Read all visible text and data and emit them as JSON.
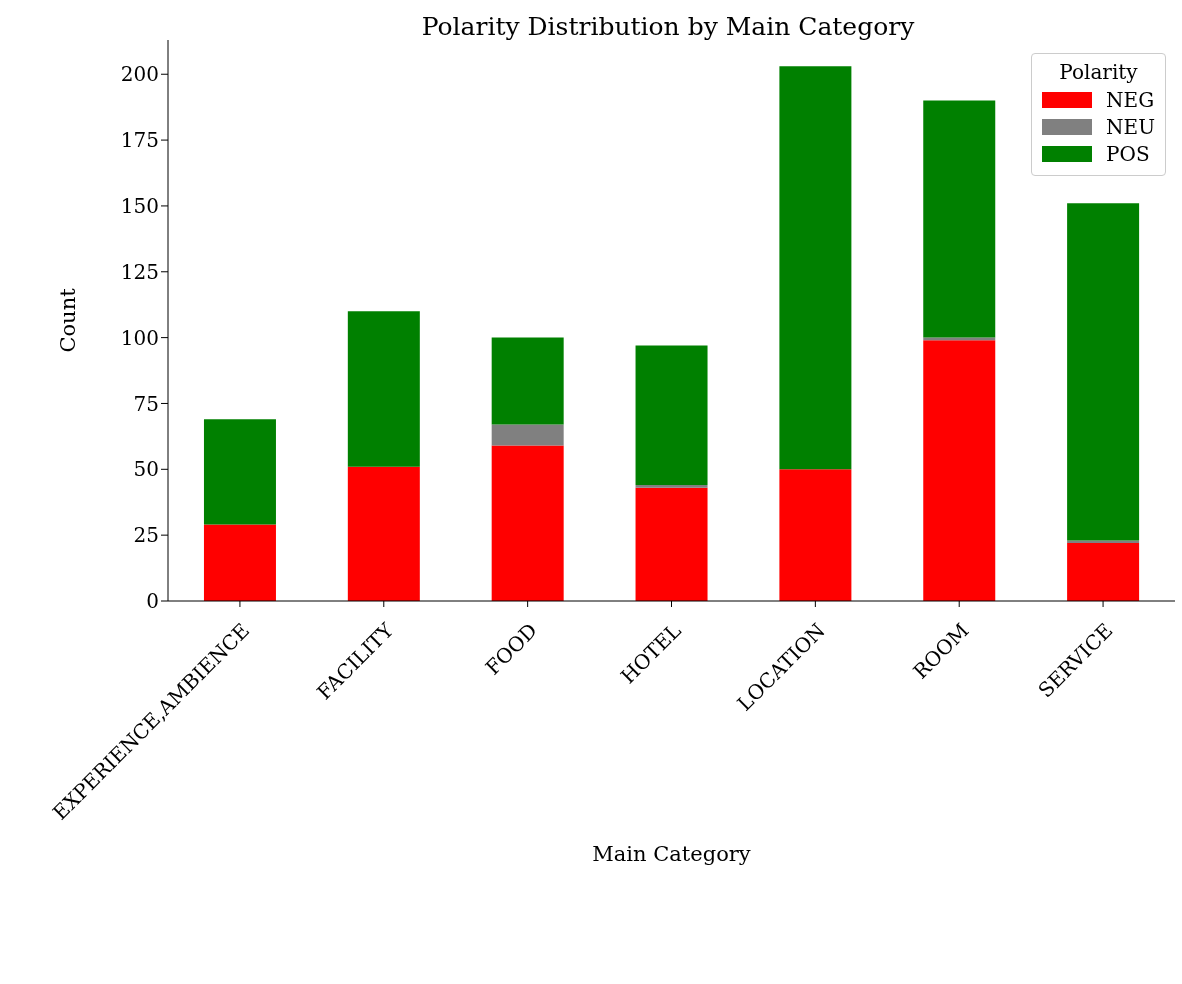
{
  "chart_data": {
    "type": "bar",
    "title": "Polarity Distribution by Main Category",
    "xlabel": "Main Category",
    "ylabel": "Count",
    "legend_title": "Polarity",
    "categories": [
      "EXPERIENCE,AMBIENCE",
      "FACILITY",
      "FOOD",
      "HOTEL",
      "LOCATION",
      "ROOM",
      "SERVICE"
    ],
    "series": [
      {
        "name": "NEG",
        "color": "#ff0000",
        "values": [
          29,
          51,
          59,
          43,
          50,
          99,
          22
        ]
      },
      {
        "name": "NEU",
        "color": "#808080",
        "values": [
          0,
          0,
          8,
          1,
          0,
          1,
          1
        ]
      },
      {
        "name": "POS",
        "color": "#008000",
        "values": [
          40,
          59,
          33,
          53,
          153,
          90,
          128
        ]
      }
    ],
    "stacked": true,
    "ylim": [
      0,
      213
    ],
    "yticks": [
      0,
      25,
      50,
      75,
      100,
      125,
      150,
      175,
      200
    ],
    "grid": false,
    "legend": "top right"
  }
}
